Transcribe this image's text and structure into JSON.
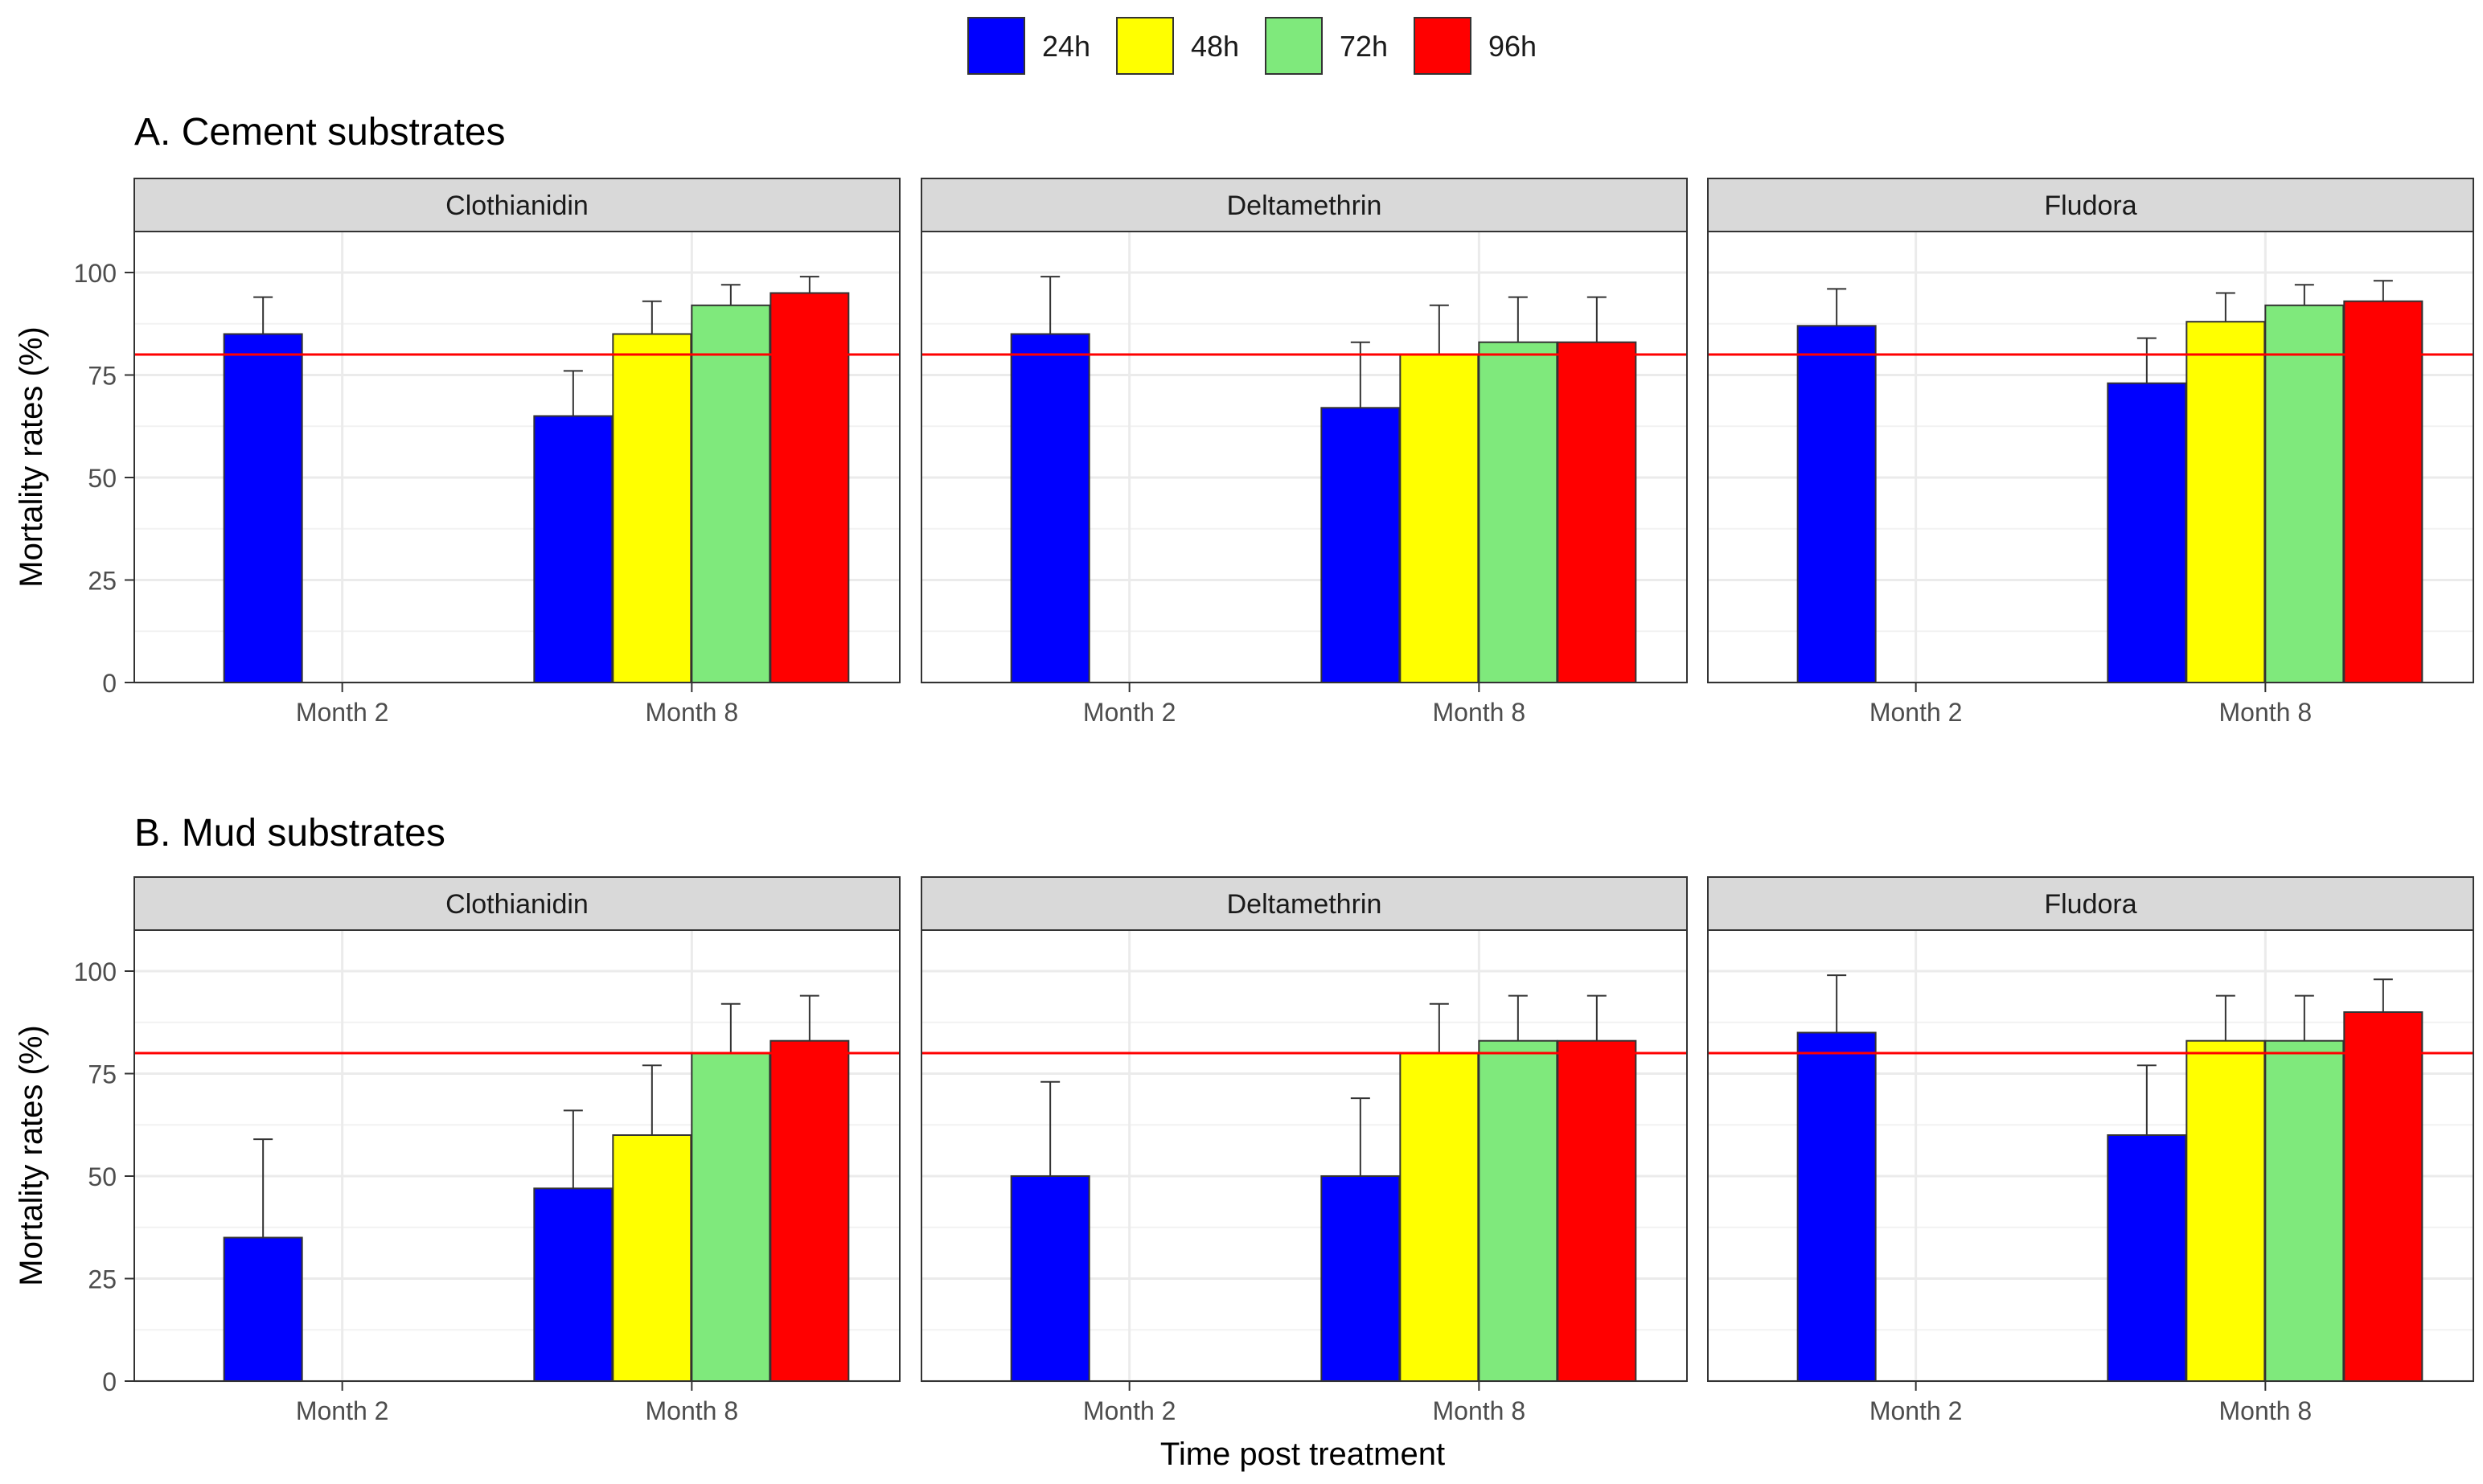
{
  "chart_data": {
    "type": "bar",
    "legend": {
      "position": "top",
      "entries": [
        {
          "label": "24h",
          "color": "#0000FF"
        },
        {
          "label": "48h",
          "color": "#FFFF00"
        },
        {
          "label": "72h",
          "color": "#7FE97C"
        },
        {
          "label": "96h",
          "color": "#FF0000"
        }
      ]
    },
    "xlabel": "Time post treatment",
    "ylabel": "Mortality rates (%)",
    "ylim": [
      0,
      110
    ],
    "yticks": [
      0,
      25,
      50,
      75,
      100
    ],
    "categories": [
      "Month 2",
      "Month 8"
    ],
    "reference_line": {
      "y": 80,
      "color": "#FF0000"
    },
    "grid": true,
    "panels": [
      {
        "title": "A. Cement substrates",
        "facets": [
          {
            "name": "Clothianidin",
            "groups": [
              {
                "category": "Month 2",
                "bars": [
                  {
                    "series": "24h",
                    "value": 85,
                    "error": 9
                  }
                ]
              },
              {
                "category": "Month 8",
                "bars": [
                  {
                    "series": "24h",
                    "value": 65,
                    "error": 11
                  },
                  {
                    "series": "48h",
                    "value": 85,
                    "error": 8
                  },
                  {
                    "series": "72h",
                    "value": 92,
                    "error": 5
                  },
                  {
                    "series": "96h",
                    "value": 95,
                    "error": 4
                  }
                ]
              }
            ]
          },
          {
            "name": "Deltamethrin",
            "groups": [
              {
                "category": "Month 2",
                "bars": [
                  {
                    "series": "24h",
                    "value": 85,
                    "error": 14
                  }
                ]
              },
              {
                "category": "Month 8",
                "bars": [
                  {
                    "series": "24h",
                    "value": 67,
                    "error": 16
                  },
                  {
                    "series": "48h",
                    "value": 80,
                    "error": 12
                  },
                  {
                    "series": "72h",
                    "value": 83,
                    "error": 11
                  },
                  {
                    "series": "96h",
                    "value": 83,
                    "error": 11
                  }
                ]
              }
            ]
          },
          {
            "name": "Fludora",
            "groups": [
              {
                "category": "Month 2",
                "bars": [
                  {
                    "series": "24h",
                    "value": 87,
                    "error": 9
                  }
                ]
              },
              {
                "category": "Month 8",
                "bars": [
                  {
                    "series": "24h",
                    "value": 73,
                    "error": 11
                  },
                  {
                    "series": "48h",
                    "value": 88,
                    "error": 7
                  },
                  {
                    "series": "72h",
                    "value": 92,
                    "error": 5
                  },
                  {
                    "series": "96h",
                    "value": 93,
                    "error": 5
                  }
                ]
              }
            ]
          }
        ]
      },
      {
        "title": "B. Mud substrates",
        "facets": [
          {
            "name": "Clothianidin",
            "groups": [
              {
                "category": "Month 2",
                "bars": [
                  {
                    "series": "24h",
                    "value": 35,
                    "error": 24
                  }
                ]
              },
              {
                "category": "Month 8",
                "bars": [
                  {
                    "series": "24h",
                    "value": 47,
                    "error": 19
                  },
                  {
                    "series": "48h",
                    "value": 60,
                    "error": 17
                  },
                  {
                    "series": "72h",
                    "value": 80,
                    "error": 12
                  },
                  {
                    "series": "96h",
                    "value": 83,
                    "error": 11
                  }
                ]
              }
            ]
          },
          {
            "name": "Deltamethrin",
            "groups": [
              {
                "category": "Month 2",
                "bars": [
                  {
                    "series": "24h",
                    "value": 50,
                    "error": 23
                  }
                ]
              },
              {
                "category": "Month 8",
                "bars": [
                  {
                    "series": "24h",
                    "value": 50,
                    "error": 19
                  },
                  {
                    "series": "48h",
                    "value": 80,
                    "error": 12
                  },
                  {
                    "series": "72h",
                    "value": 83,
                    "error": 11
                  },
                  {
                    "series": "96h",
                    "value": 83,
                    "error": 11
                  }
                ]
              }
            ]
          },
          {
            "name": "Fludora",
            "groups": [
              {
                "category": "Month 2",
                "bars": [
                  {
                    "series": "24h",
                    "value": 85,
                    "error": 14
                  }
                ]
              },
              {
                "category": "Month 8",
                "bars": [
                  {
                    "series": "24h",
                    "value": 60,
                    "error": 17
                  },
                  {
                    "series": "48h",
                    "value": 83,
                    "error": 11
                  },
                  {
                    "series": "72h",
                    "value": 83,
                    "error": 11
                  },
                  {
                    "series": "96h",
                    "value": 90,
                    "error": 8
                  }
                ]
              }
            ]
          }
        ]
      }
    ]
  }
}
